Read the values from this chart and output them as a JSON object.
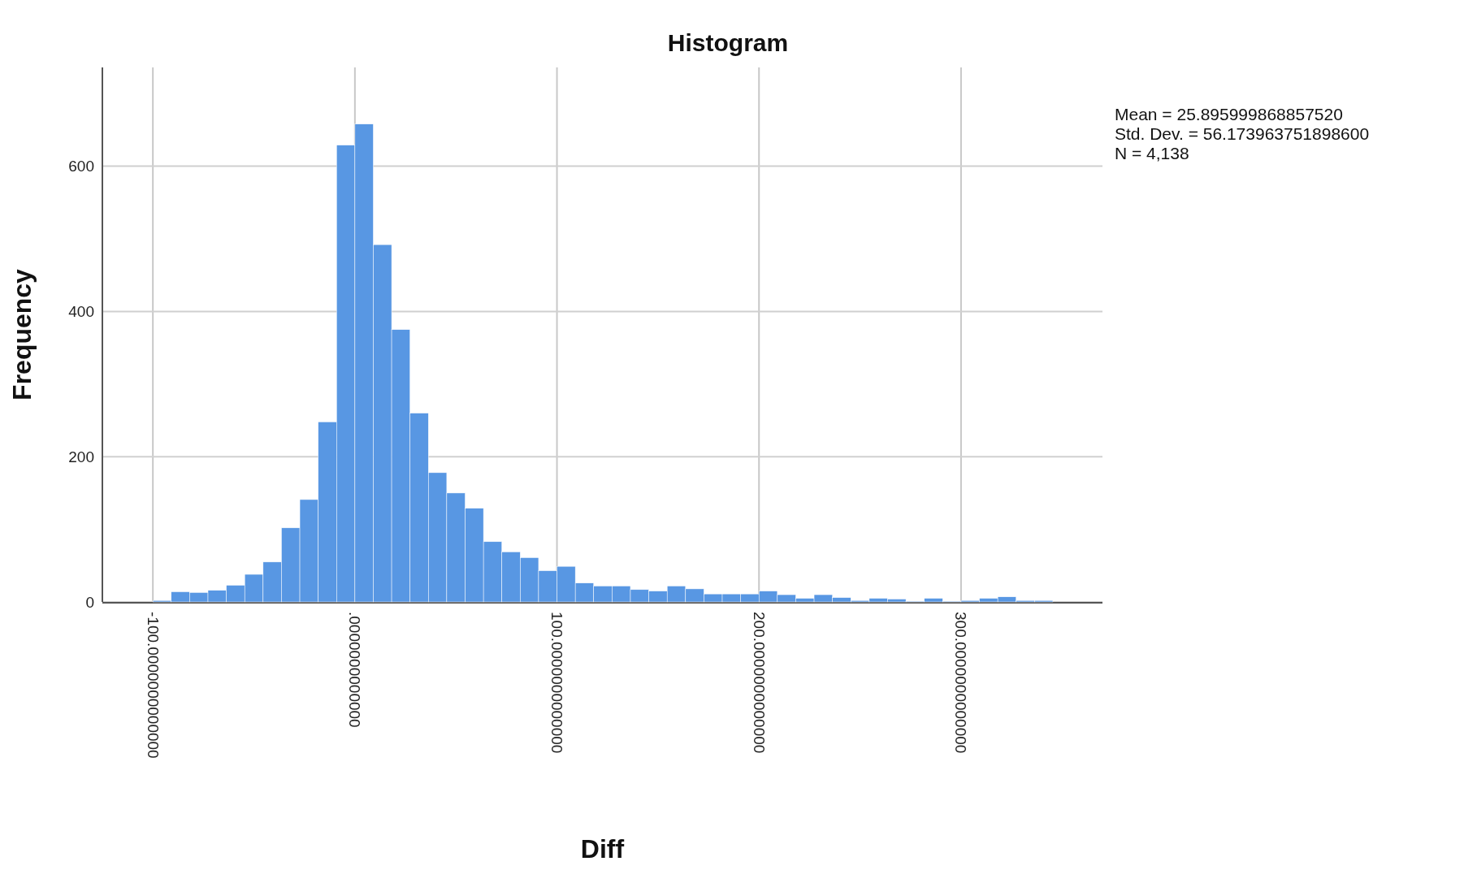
{
  "chart_data": {
    "type": "histogram",
    "title": "Histogram",
    "xlabel": "Diff",
    "ylabel": "Frequency",
    "annotations": [
      "Mean = 25.895999868857520",
      "Std. Dev. = 56.173963751898600",
      "N = 4,138"
    ],
    "bins": [
      -100,
      -90.91,
      -81.82,
      -72.73,
      -63.64,
      -54.55,
      -45.45,
      -36.36,
      -27.27,
      -18.18,
      -9.09,
      0,
      9.09,
      18.18,
      27.27,
      36.36,
      45.45,
      54.55,
      63.64,
      72.73,
      81.82,
      90.91,
      100,
      109.09,
      118.18,
      127.27,
      136.36,
      145.45,
      154.55,
      163.64,
      172.73,
      181.82,
      190.91,
      200,
      209.09,
      218.18,
      227.27,
      236.36,
      245.45,
      254.55,
      263.64,
      272.73,
      281.82,
      290.91,
      300,
      309.09,
      318.18,
      327.27,
      336.36,
      345.45
    ],
    "values": [
      2,
      14,
      13,
      16,
      23,
      38,
      55,
      102,
      141,
      248,
      629,
      658,
      492,
      375,
      260,
      178,
      150,
      129,
      83,
      69,
      61,
      43,
      49,
      26,
      22,
      22,
      17,
      15,
      22,
      18,
      11,
      11,
      11,
      15,
      10,
      5,
      10,
      6,
      2,
      5,
      4,
      1,
      5,
      1,
      2,
      5,
      7,
      2,
      2
    ],
    "color": "#5897e3",
    "xlim": [
      -125,
      370
    ],
    "xticks": [
      {
        "value": -100,
        "label": "-100.0000000000000"
      },
      {
        "value": 0,
        "label": ".0000000000000"
      },
      {
        "value": 100,
        "label": "100.0000000000000"
      },
      {
        "value": 200,
        "label": "200.0000000000000"
      },
      {
        "value": 300,
        "label": "300.0000000000000"
      }
    ],
    "ylim": [
      0,
      736
    ],
    "yticks": [
      0,
      200,
      400,
      600
    ],
    "grid": true
  }
}
